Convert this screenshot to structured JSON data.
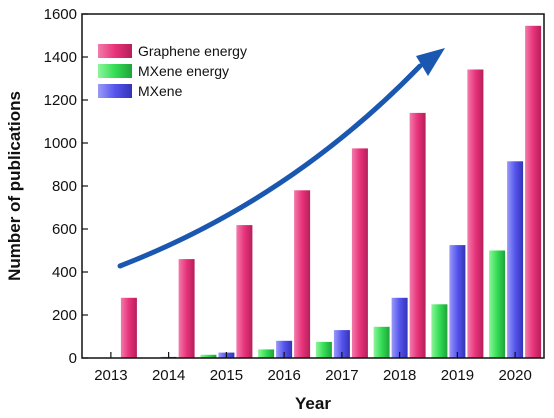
{
  "chart_data": {
    "type": "bar",
    "title": "",
    "xlabel": "Year",
    "ylabel": "Number of publications",
    "categories": [
      "2013",
      "2014",
      "2015",
      "2016",
      "2017",
      "2018",
      "2019",
      "2020"
    ],
    "ylim": [
      0,
      1600
    ],
    "yticks": [
      "0",
      "200",
      "400",
      "600",
      "800",
      "1000",
      "1200",
      "1400",
      "1600"
    ],
    "grid": false,
    "legend_position": "top-left",
    "series": [
      {
        "name": "MXene energy",
        "color": "#33dd55",
        "values": [
          0,
          2,
          15,
          40,
          75,
          145,
          250,
          500
        ]
      },
      {
        "name": "MXene",
        "color": "#5555ee",
        "values": [
          0,
          5,
          25,
          80,
          130,
          280,
          525,
          915
        ]
      },
      {
        "name": "Graphene energy",
        "color": "#e8337a",
        "values": [
          280,
          460,
          618,
          780,
          975,
          1140,
          1342,
          1545
        ]
      }
    ],
    "legend_order": [
      2,
      0,
      1
    ],
    "annotation": {
      "type": "trend-arrow",
      "color": "#1a57b0"
    }
  }
}
